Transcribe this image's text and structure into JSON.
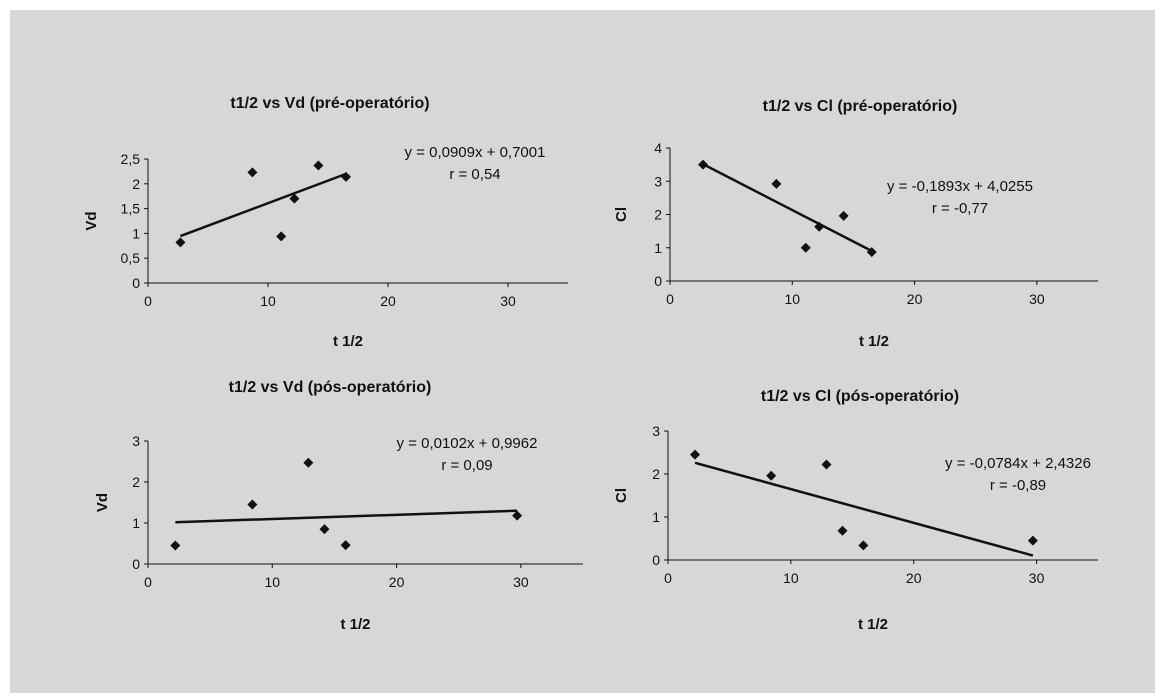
{
  "colors": {
    "background": "#d7d7d8",
    "ink": "#111111"
  },
  "chart_data": [
    {
      "type": "scatter",
      "title": "t1/2 vs Vd (pré-operatório)",
      "xlabel": "t 1/2",
      "ylabel": "Vd",
      "xlim": [
        0,
        35
      ],
      "ylim": [
        0,
        2.5
      ],
      "x_ticks": [
        "0",
        "10",
        "20",
        "30"
      ],
      "y_ticks": [
        "0",
        "0,5",
        "1",
        "1,5",
        "2",
        "2,5"
      ],
      "points": [
        {
          "x": 2.7,
          "y": 0.82
        },
        {
          "x": 8.7,
          "y": 2.23
        },
        {
          "x": 11.1,
          "y": 0.94
        },
        {
          "x": 12.2,
          "y": 1.7
        },
        {
          "x": 14.2,
          "y": 2.37
        },
        {
          "x": 16.5,
          "y": 2.14
        }
      ],
      "trendline": {
        "x": [
          2.7,
          16.5
        ],
        "slope": 0.0909,
        "intercept": 0.7001
      },
      "annotations": [
        "y = 0,0909x + 0,7001",
        "r = 0,54"
      ],
      "grid": false,
      "legend": "none"
    },
    {
      "type": "scatter",
      "title": "t1/2 vs Cl (pré-operatório)",
      "xlabel": "t 1/2",
      "ylabel": "Cl",
      "xlim": [
        0,
        35
      ],
      "ylim": [
        0,
        4
      ],
      "x_ticks": [
        "0",
        "10",
        "20",
        "30"
      ],
      "y_ticks": [
        "0",
        "1",
        "2",
        "3",
        "4"
      ],
      "points": [
        {
          "x": 2.7,
          "y": 3.5
        },
        {
          "x": 8.7,
          "y": 2.92
        },
        {
          "x": 11.1,
          "y": 1.0
        },
        {
          "x": 12.2,
          "y": 1.63
        },
        {
          "x": 14.2,
          "y": 1.96
        },
        {
          "x": 16.5,
          "y": 0.87
        }
      ],
      "trendline": {
        "x": [
          2.7,
          16.5
        ],
        "slope": -0.1893,
        "intercept": 4.0255
      },
      "annotations": [
        "y = -0,1893x + 4,0255",
        "r = -0,77"
      ],
      "grid": false,
      "legend": "none"
    },
    {
      "type": "scatter",
      "title": "t1/2 vs Vd (pós-operatório)",
      "xlabel": "t 1/2",
      "ylabel": "Vd",
      "xlim": [
        0,
        35
      ],
      "ylim": [
        0,
        3
      ],
      "x_ticks": [
        "0",
        "10",
        "20",
        "30"
      ],
      "y_ticks": [
        "0",
        "1",
        "2",
        "3"
      ],
      "points": [
        {
          "x": 2.2,
          "y": 0.45
        },
        {
          "x": 8.4,
          "y": 1.45
        },
        {
          "x": 12.9,
          "y": 2.47
        },
        {
          "x": 14.2,
          "y": 0.85
        },
        {
          "x": 15.9,
          "y": 0.46
        },
        {
          "x": 29.7,
          "y": 1.18
        }
      ],
      "trendline": {
        "x": [
          2.2,
          29.7
        ],
        "slope": 0.0102,
        "intercept": 0.9962
      },
      "annotations": [
        "y = 0,0102x + 0,9962",
        "r = 0,09"
      ],
      "grid": false,
      "legend": "none"
    },
    {
      "type": "scatter",
      "title": "t1/2 vs Cl (pós-operatório)",
      "xlabel": "t 1/2",
      "ylabel": "Cl",
      "xlim": [
        0,
        35
      ],
      "ylim": [
        0,
        3
      ],
      "x_ticks": [
        "0",
        "10",
        "20",
        "30"
      ],
      "y_ticks": [
        "0",
        "1",
        "2",
        "3"
      ],
      "points": [
        {
          "x": 2.2,
          "y": 2.45
        },
        {
          "x": 8.4,
          "y": 1.96
        },
        {
          "x": 12.9,
          "y": 2.22
        },
        {
          "x": 14.2,
          "y": 0.68
        },
        {
          "x": 15.9,
          "y": 0.34
        },
        {
          "x": 29.7,
          "y": 0.45
        }
      ],
      "trendline": {
        "x": [
          2.2,
          29.7
        ],
        "slope": -0.0784,
        "intercept": 2.4326
      },
      "annotations": [
        "y = -0,0784x + 2,4326",
        "r = -0,89"
      ],
      "grid": false,
      "legend": "none"
    }
  ]
}
